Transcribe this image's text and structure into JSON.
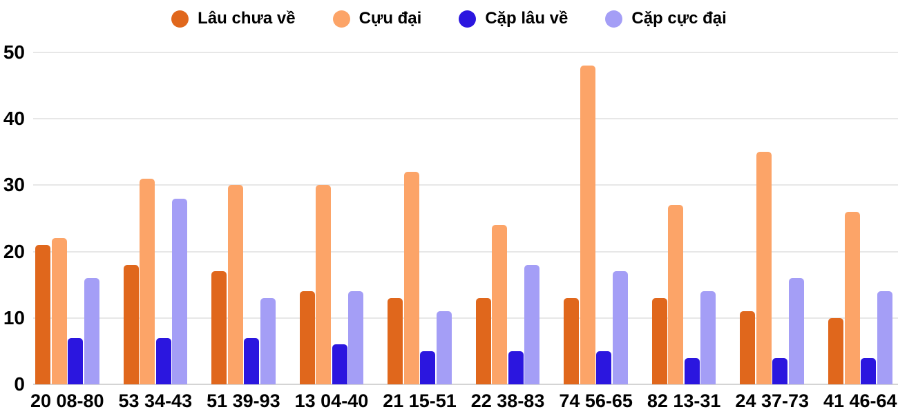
{
  "chart_data": {
    "type": "bar",
    "title": "",
    "xlabel": "",
    "ylabel": "",
    "categories": [
      "20 08-80",
      "53 34-43",
      "51 39-93",
      "13 04-40",
      "21 15-51",
      "22 38-83",
      "74 56-65",
      "82 13-31",
      "24 37-73",
      "41 46-64"
    ],
    "series": [
      {
        "name": "Lâu chưa về",
        "color": "#E0671C",
        "values": [
          21,
          18,
          17,
          14,
          13,
          13,
          13,
          13,
          11,
          10
        ]
      },
      {
        "name": "Cựu đại",
        "color": "#FCA468",
        "values": [
          22,
          31,
          30,
          30,
          32,
          24,
          48,
          27,
          35,
          26
        ]
      },
      {
        "name": "Cặp lâu về",
        "color": "#2B16DF",
        "values": [
          7,
          7,
          7,
          6,
          5,
          5,
          5,
          4,
          4,
          4
        ]
      },
      {
        "name": "Cặp cực đại",
        "color": "#A49EF6",
        "values": [
          16,
          28,
          13,
          14,
          11,
          18,
          17,
          14,
          16,
          14
        ]
      }
    ],
    "y_ticks": [
      0,
      10,
      20,
      30,
      40,
      50
    ],
    "ylim": [
      0,
      50
    ],
    "grid": true,
    "legend_position": "top"
  },
  "colors": {
    "background": "#FFFFFF",
    "gridline": "#E7E7E7",
    "axis_baseline": "#D4D4D4",
    "text": "#000000"
  }
}
